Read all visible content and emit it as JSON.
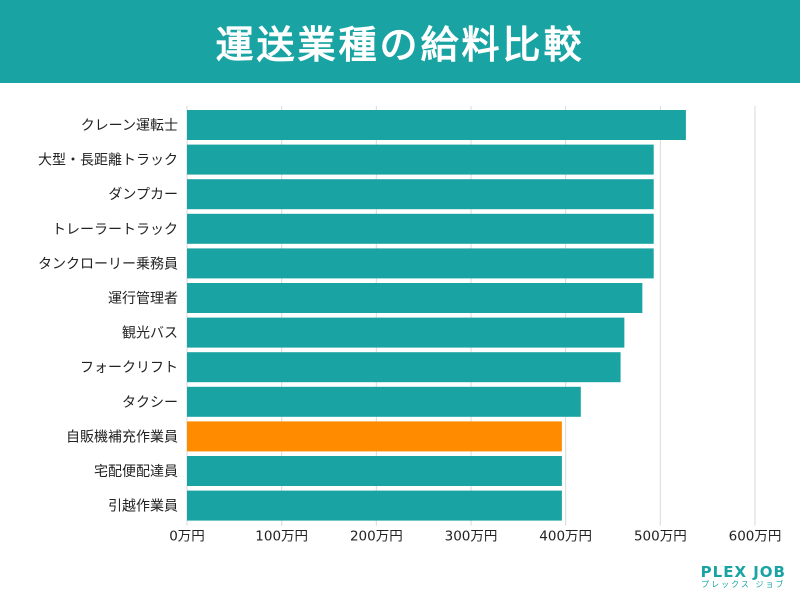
{
  "header": {
    "title": "運送業種の給料比較"
  },
  "logo": {
    "name": "PLEX JOB",
    "sub": "プレックス ジョブ"
  },
  "colors": {
    "primary": "#1aa3a3",
    "highlight": "#ff8c00",
    "grid": "#d9d9d9"
  },
  "chart_data": {
    "type": "bar",
    "orientation": "horizontal",
    "title": "運送業種の給料比較",
    "unit": "万円",
    "categories": [
      "クレーン運転士",
      "大型・長距離トラック",
      "ダンプカー",
      "トレーラートラック",
      "タンクローリー乗務員",
      "運行管理者",
      "観光バス",
      "フォークリフト",
      "タクシー",
      "自販機補充作業員",
      "宅配便配達員",
      "引越作業員"
    ],
    "values": [
      527,
      493,
      493,
      493,
      493,
      481,
      462,
      458,
      416,
      396,
      396,
      396
    ],
    "highlight_index": 9,
    "xlim": [
      0,
      600
    ],
    "ticks": [
      0,
      100,
      200,
      300,
      400,
      500,
      600
    ],
    "tick_labels": [
      "0万円",
      "100万円",
      "200万円",
      "300万円",
      "400万円",
      "500万円",
      "600万円"
    ],
    "grid": true
  }
}
